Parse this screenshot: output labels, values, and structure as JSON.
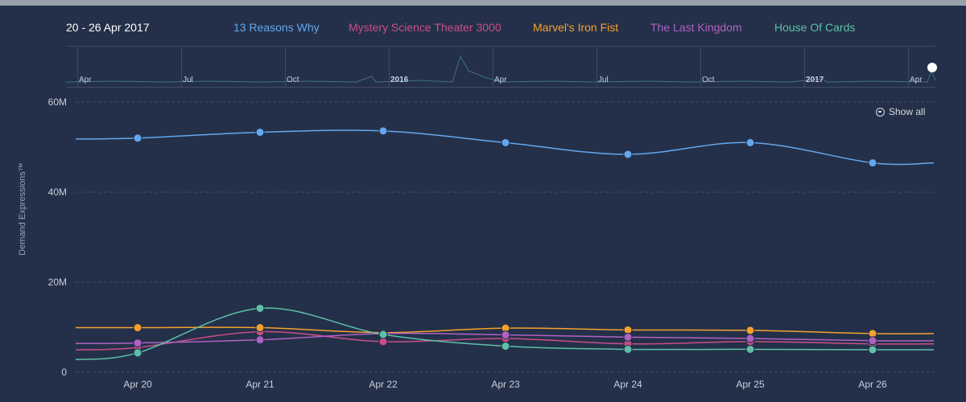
{
  "header": {
    "range_label": "20 - 26 Apr 2017"
  },
  "legend": [
    {
      "name": "13 Reasons Why",
      "color": "#63a7f0"
    },
    {
      "name": "Mystery Science Theater 3000",
      "color": "#c84e86"
    },
    {
      "name": "Marvel's Iron Fist",
      "color": "#f5a12e"
    },
    {
      "name": "The Last Kingdom",
      "color": "#b062c2"
    },
    {
      "name": "House Of Cards",
      "color": "#5ec0a8"
    }
  ],
  "navigator": {
    "ticks": [
      {
        "label": "Apr",
        "bold": false
      },
      {
        "label": "Jul",
        "bold": false
      },
      {
        "label": "Oct",
        "bold": false
      },
      {
        "label": "2016",
        "bold": true
      },
      {
        "label": "Apr",
        "bold": false
      },
      {
        "label": "Jul",
        "bold": false
      },
      {
        "label": "Oct",
        "bold": false
      },
      {
        "label": "2017",
        "bold": true
      },
      {
        "label": "Apr",
        "bold": false
      }
    ]
  },
  "show_all_label": "Show all",
  "chart_data": {
    "type": "line",
    "ylabel": "Demand Expressions™",
    "ylim": [
      0,
      60
    ],
    "y_ticks": [
      "0",
      "20M",
      "40M",
      "60M"
    ],
    "categories": [
      "Apr 20",
      "Apr 21",
      "Apr 22",
      "Apr 23",
      "Apr 24",
      "Apr 25",
      "Apr 26"
    ],
    "grid": true,
    "series": [
      {
        "name": "13 Reasons Why",
        "color": "#63a7f0",
        "values": [
          52.0,
          53.3,
          53.6,
          51.0,
          48.4,
          51.0,
          46.5
        ]
      },
      {
        "name": "Mystery Science Theater 3000",
        "color": "#c84e86",
        "values": [
          5.5,
          9.0,
          6.8,
          7.5,
          6.3,
          6.8,
          6.3
        ]
      },
      {
        "name": "Marvel's Iron Fist",
        "color": "#f5a12e",
        "values": [
          9.9,
          9.9,
          8.8,
          9.8,
          9.4,
          9.3,
          8.6
        ]
      },
      {
        "name": "The Last Kingdom",
        "color": "#b062c2",
        "values": [
          6.5,
          7.2,
          8.6,
          8.3,
          7.8,
          7.5,
          7.0
        ]
      },
      {
        "name": "House Of Cards",
        "color": "#5ec0a8",
        "values": [
          4.3,
          14.2,
          8.4,
          5.8,
          5.1,
          5.1,
          5.0
        ]
      }
    ]
  }
}
